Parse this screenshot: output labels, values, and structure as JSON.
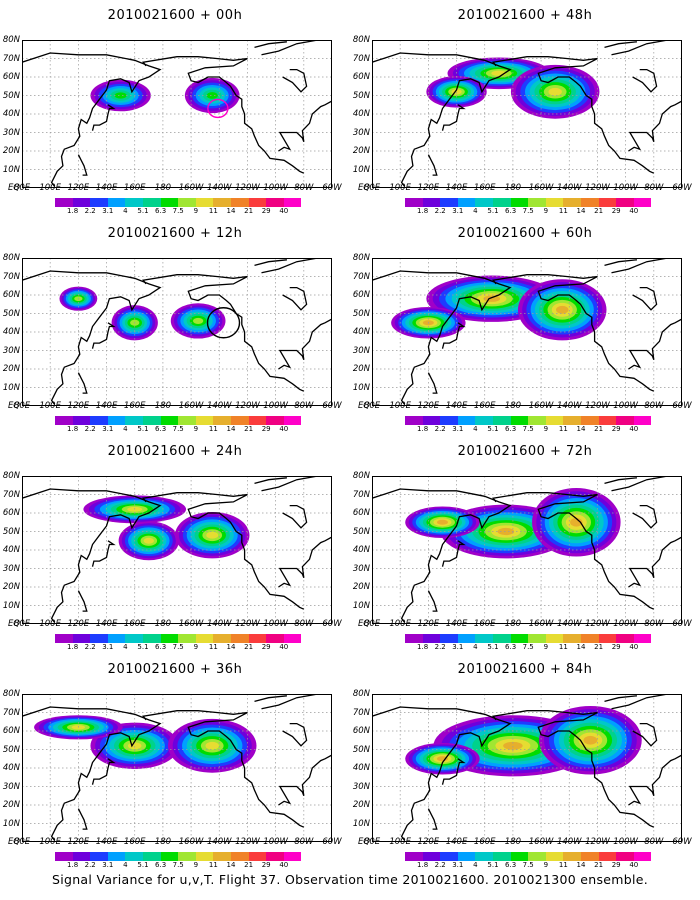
{
  "panels": [
    {
      "title": "2010021600 + 00h",
      "intensity": 0.45
    },
    {
      "title": "2010021600 + 48h",
      "intensity": 0.85
    },
    {
      "title": "2010021600 + 12h",
      "intensity": 0.6
    },
    {
      "title": "2010021600 + 60h",
      "intensity": 0.95
    },
    {
      "title": "2010021600 + 24h",
      "intensity": 0.75
    },
    {
      "title": "2010021600 + 72h",
      "intensity": 1.0
    },
    {
      "title": "2010021600 + 36h",
      "intensity": 0.8
    },
    {
      "title": "2010021600 + 84h",
      "intensity": 1.0
    }
  ],
  "lat_labels": [
    "80N",
    "70N",
    "60N",
    "50N",
    "40N",
    "30N",
    "20N",
    "10N",
    "EQ"
  ],
  "lon_labels": [
    "80E",
    "100E",
    "120E",
    "140E",
    "160E",
    "180",
    "160W",
    "140W",
    "120W",
    "100W",
    "80W",
    "60W"
  ],
  "colorbar": {
    "labels": [
      "1.8",
      "2.2",
      "3.1",
      "4",
      "5.1",
      "6.3",
      "7.5",
      "9",
      "11",
      "14",
      "21",
      "29",
      "40"
    ],
    "colors": [
      "#a000c8",
      "#6e00dc",
      "#1e3cff",
      "#00a0ff",
      "#00c8c8",
      "#00d28c",
      "#00dc00",
      "#a0e632",
      "#e6dc32",
      "#e6af2d",
      "#f08228",
      "#fa3c3c",
      "#f00082",
      "#ff00c8"
    ]
  },
  "caption": "Signal Variance for u,v,T. Flight 37. Observation time 2010021600. 2010021300 ensemble."
}
